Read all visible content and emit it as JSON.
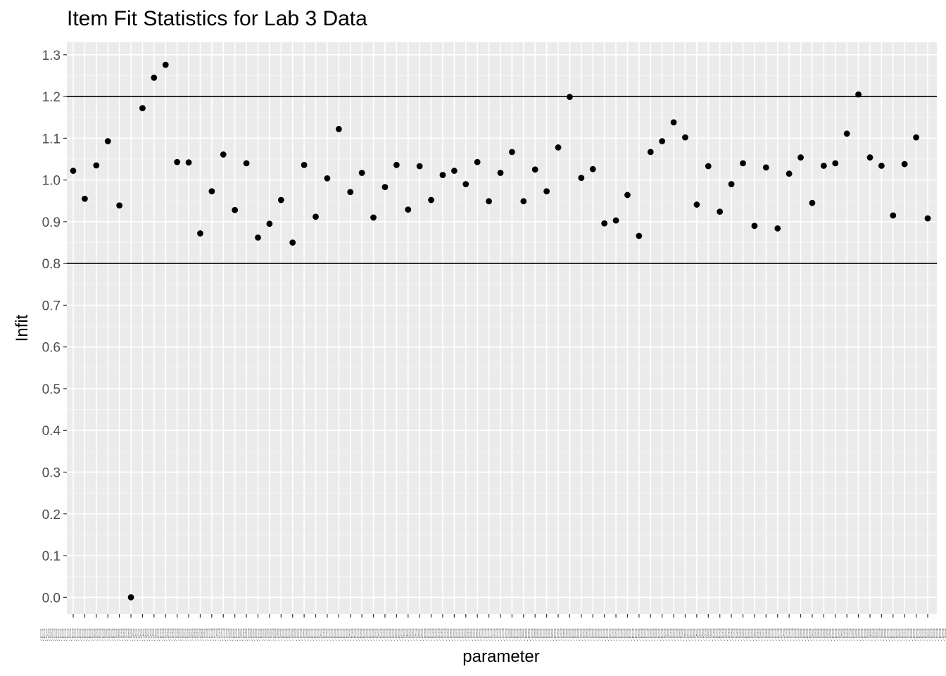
{
  "chart_data": {
    "type": "scatter",
    "title": "Item Fit Statistics for Lab 3 Data",
    "xlabel": "parameter",
    "ylabel": "Infit",
    "ylim": [
      -0.04,
      1.33
    ],
    "y_ticks": [
      "0.0",
      "0.1",
      "0.2",
      "0.3",
      "0.4",
      "0.5",
      "0.6",
      "0.7",
      "0.8",
      "0.9",
      "1.0",
      "1.1",
      "1.2",
      "1.3"
    ],
    "hlines": [
      0.8,
      1.2
    ],
    "grid": true,
    "x_tick_labels_overlapping": "Q1_1Q1_2Q1_3Q1_4Q1_5Q1_6Q1_7Q1_8Q1_9Q1_10Q1_11Q1_12Q1_13Q1_14Q1_15Q1_16Q1_17Q1_18Q1_19Q1_20Q1_21Q1_22Q1_23Q1_24Q1_25Q1_26Q1_27Q1_28Q1_29Q1_30Q1_31Q1_32Q1_33Q1_34Q1_35Q1_36Q1_37Q1_38Q1_39Q1_40Q1_41Q1_42Q1_43Q1_44Q1_45Q1_46Q1_47Q1_48Q1_49Q1_50Q1_51Q1_52Q1_53Q1_54Q1_55Q1_56Q1_57Q1_58Q1_59Q1_60Q1_61Q1_62Q1_63Q1_64Q1_65Q1_66Q1_67Q1_68Q1_69Q1_70Q1_71Q1_72Q1_73Q1_74Q1_75Q1_76Q1_77Q1_78Q1_79Q1_80Q1_81Q1_82Q1_83Q1_84Q1_85Q1_86Q1_87Q1_88Q1_89Q1_90Q1_91Q1_92Q1_93Q1_94Q1_95Q1_96Q1_97Q1_98Q1_99Q1_100Q1_101Q1_102Q1_103Q1_104Q1_105Q1_106Q1_107Q1_108Q1_109Q1_110Q1_111Q1_112Q1_113Q1_114Q1_115Q1_116Q1_117Q1_118Q1_119Q1_120Q1_121Q1_122Q1_123Q1_124Q1_125Q1_126Q1_127Q1_128Q1_129Q1_130Q1_131Q1_132Q1_133Q1_134Q1_135Q1_136Q1_137Q1_138Q1_139Q1_140Q1_141Q1_142Q1_143Q1_144Q1_145Q1_146Q1_147Q1_148Q1_149Q1_150Q1_151Q1_152Q1_153Q1_154Q1_155Q1_156Q1_157Q1_158Q1_159Q1_160Q1_161Q1_162Q1_163Q1_164Q1_165Q1_166Q1_167Q1_168Q1_169Q1_170Q1_171Q1_172Q1_173Q1_174Q1_175Q1_176Q1_177Q1_178Q1_179Q1_180Q1_181Q1_182Q1_183Q1_184Q1_185Q1_186Q1_187Q1_188Q1_189Q1_190Q1_191Q1_192Q1_193Q1_194Q1_195Q1_196Q1_197Q1_198Q1_199Q1_200Q1_201Q1_202Q1_203Q1_204Q1_205Q1_206Q1_207Q1_208Q1_209Q1_210Q1_211Q1_212Q1_213Q1_214Q1_215Q1_216Q1_217Q1_218Q1_219Q1_220Q1_221Q1_222Q1_223Q1_224Q1_225Q1_226Q1_227Q1_228Q1_229Q1_230Q1_231Q1_232Q1_233Q1_234Q1_235Q1_236Q1_237Q1_238Q1_239Q1_240Q1_241Q1_242Q1_243Q1_244Q1_245Q1_246Q1_247Q1_248Q1_249Q1_250Q1_251Q1_252Q1_253Q1_254Q1_255Q1_256Q1_257Q1_258Q1_259Q1_260Q1_261Q1_262Q1_263Q1_264Q1_265Q1_266Q1_267Q1_268Q1_269Q1_270Q1_271Q1_272Q1_273Q1_274Q1_275Q1_276Q1_277Q1_278Q1_279Q1_280Q1_281Q1_282Q1_283Q1_284Q1_285Q1_286Q1_287Q1_288Q1_289Q1_290Q1_291Q1_292Q1_293Q1_294Q1_295Q1_296Q1_297Q1_298Q1_299Q1_300Q1_301Q1_302Q1_303Q1_304Q1_305Q1_306Q1_307Q1_308Q1_309Q1_310Q1_311Q1_312Q1_313Q1_314Q1_315Q1_316Q1_317Q1_318Q1_319Q1_320Q1_321Q1_322Q1_323Q1_324Q1_325Q1_326Q1_327Q1_328Q1_329Q1_330",
    "values": [
      1.022,
      0.955,
      1.035,
      1.093,
      0.939,
      0.0,
      1.172,
      1.245,
      1.276,
      1.043,
      1.042,
      0.872,
      0.973,
      1.061,
      0.928,
      1.04,
      0.862,
      0.895,
      0.952,
      0.85,
      1.036,
      0.912,
      1.004,
      1.122,
      0.971,
      1.017,
      0.91,
      0.983,
      1.036,
      0.929,
      1.033,
      0.952,
      1.012,
      1.022,
      0.99,
      1.043,
      0.949,
      1.017,
      1.067,
      0.949,
      1.025,
      0.973,
      1.078,
      1.199,
      1.005,
      1.026,
      0.896,
      0.903,
      0.964,
      0.866,
      1.067,
      1.093,
      1.138,
      1.102,
      0.941,
      1.033,
      0.924,
      0.99,
      1.04,
      0.89,
      1.03,
      0.884,
      1.015,
      1.054,
      0.945,
      1.034,
      1.04,
      1.111,
      1.205,
      1.054,
      1.034,
      0.915,
      1.038,
      1.102,
      0.908
    ]
  }
}
